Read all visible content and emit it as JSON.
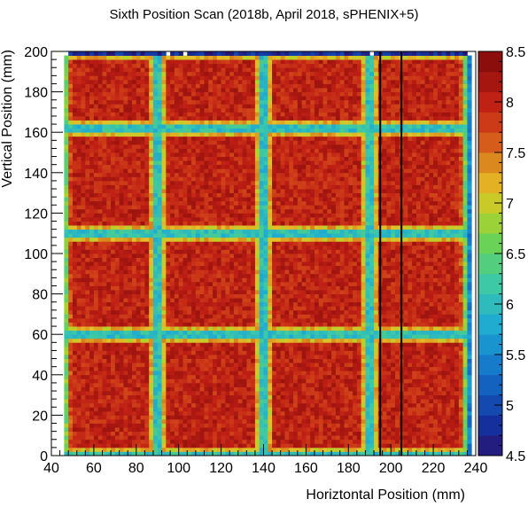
{
  "chart_data": {
    "type": "heatmap",
    "title": "Sixth Position Scan (2018b, April 2018, sPHENIX+5)",
    "xlabel": "Horiztontal Position (mm)",
    "ylabel": "Vertical Position (mm)",
    "xlim": [
      40,
      240
    ],
    "ylim": [
      0,
      200
    ],
    "x_ticks": [
      "40",
      "60",
      "80",
      "100",
      "120",
      "140",
      "160",
      "180",
      "200",
      "220",
      "240"
    ],
    "y_ticks": [
      "0",
      "20",
      "40",
      "60",
      "80",
      "100",
      "120",
      "140",
      "160",
      "180",
      "200"
    ],
    "z_range": [
      4.5,
      8.5
    ],
    "z_ticks": [
      "4.5",
      "5",
      "5.5",
      "6",
      "6.5",
      "7",
      "7.5",
      "8",
      "8.5"
    ],
    "colormap": "rainbow (dark blue → cyan → green → yellow → red → dark red)",
    "grid": false,
    "structure": {
      "rows": 4,
      "columns": 4,
      "block_pitch_mm": 50,
      "block_plateau_value": 8.0,
      "gap_value": 5.5,
      "x_block_edges_mm": [
        [
          45,
          90
        ],
        [
          90,
          140
        ],
        [
          140,
          190
        ],
        [
          190,
          237
        ]
      ],
      "y_block_edges_mm": [
        [
          0,
          60
        ],
        [
          60,
          110
        ],
        [
          110,
          162
        ],
        [
          162,
          200
        ]
      ]
    },
    "reference_lines_x_mm": [
      195,
      205
    ]
  }
}
